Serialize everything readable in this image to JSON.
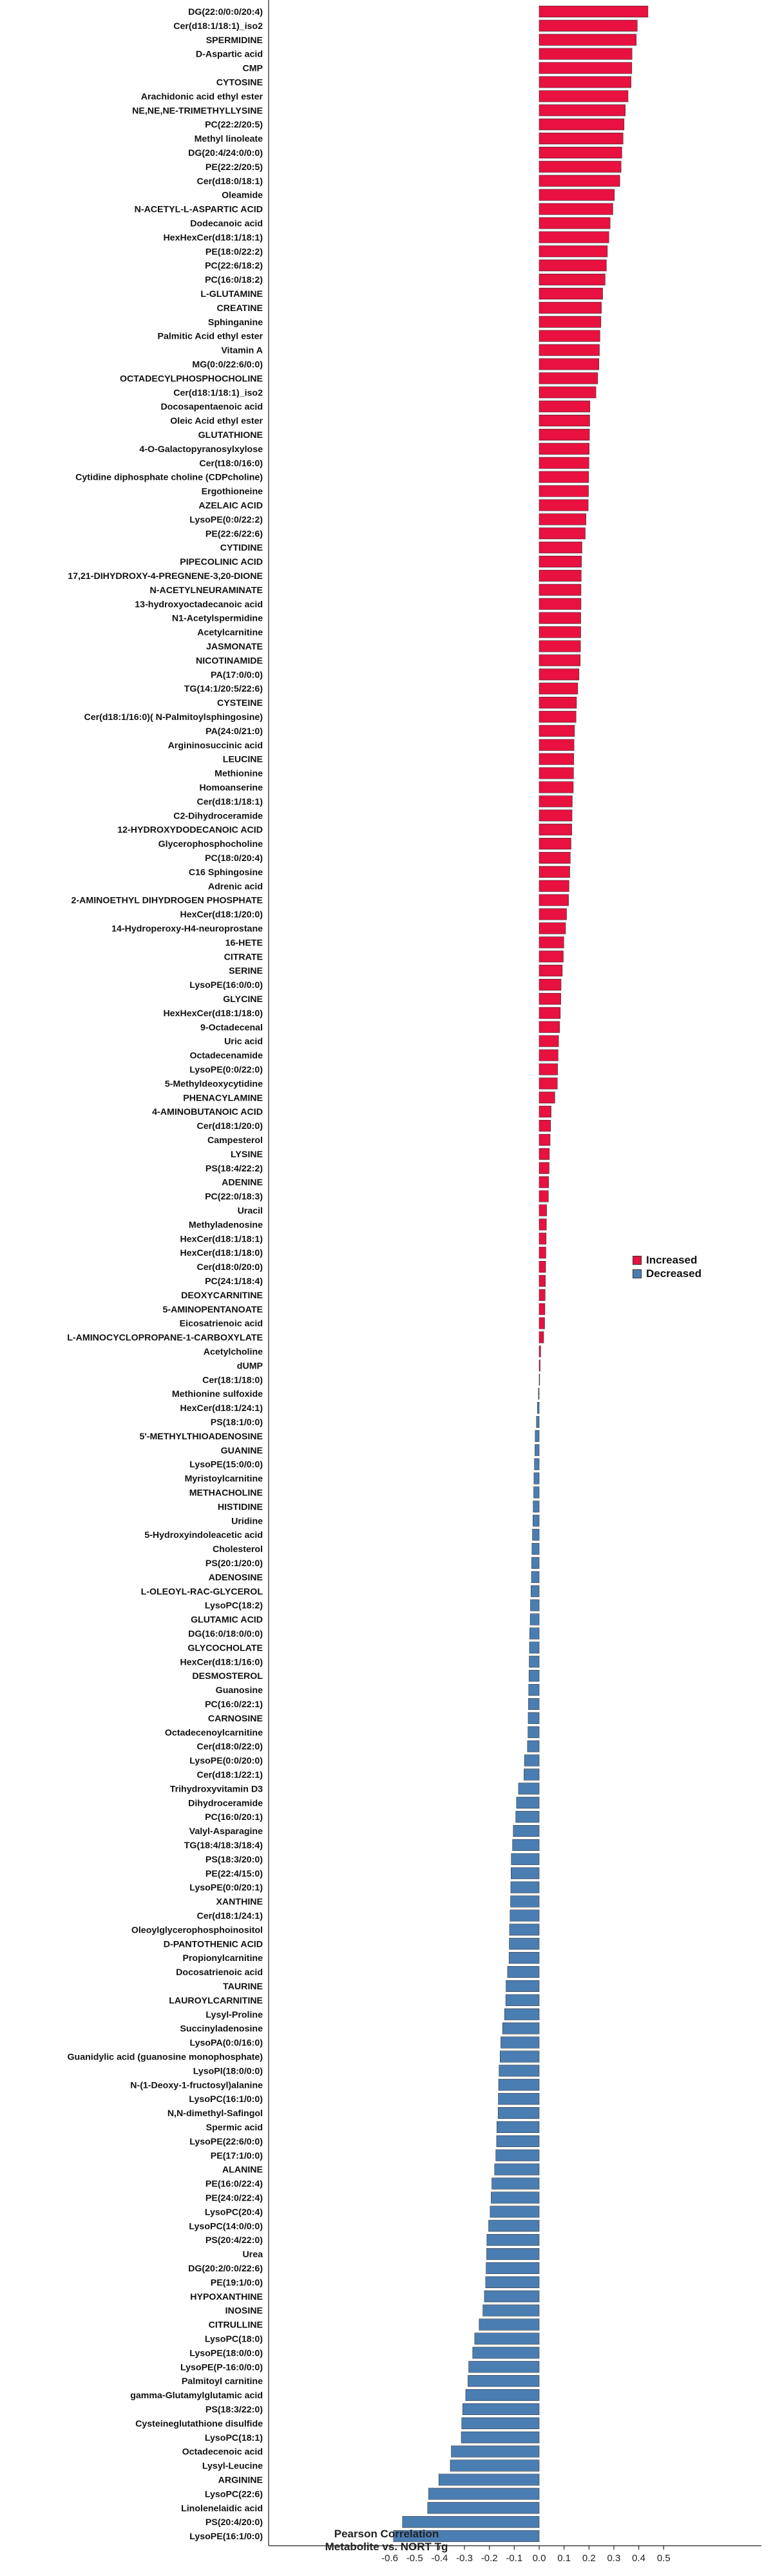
{
  "chart_data": {
    "type": "bar",
    "orientation": "horizontal",
    "xlabel": "Pearson Correlation\nMetabolite vs. NORT Tg",
    "xlim": [
      -0.65,
      0.55
    ],
    "xticks": [
      -0.6,
      -0.5,
      -0.4,
      -0.3,
      -0.2,
      -0.1,
      0.0,
      0.1,
      0.2,
      0.3,
      0.4,
      0.5
    ],
    "xtick_labels": [
      "-0.6",
      "-0.5",
      "-0.4",
      "-0.3",
      "-0.2",
      "-0.1",
      "0.0",
      "0.1",
      "0.2",
      "0.3",
      "0.4",
      "0.5"
    ],
    "grid": false,
    "legend": {
      "placement": "right-middle",
      "entries": [
        {
          "label": "Increased",
          "color": "#e8113f"
        },
        {
          "label": "Decreased",
          "color": "#4a7eb3"
        }
      ]
    },
    "colors": {
      "increased": "#e8113f",
      "decreased": "#4a7eb3",
      "edge": "#333333"
    },
    "categories": [
      "DG(22:0/0:0/20:4)",
      "Cer(d18:1/18:1)_iso2",
      "SPERMIDINE",
      "D-Aspartic acid",
      "CMP",
      "CYTOSINE",
      "Arachidonic acid ethyl ester",
      "NE,NE,NE-TRIMETHYLLYSINE",
      "PC(22:2/20:5)",
      "Methyl linoleate",
      "DG(20:4/24:0/0:0)",
      "PE(22:2/20:5)",
      "Cer(d18:0/18:1)",
      "Oleamide",
      "N-ACETYL-L-ASPARTIC ACID",
      "Dodecanoic acid",
      "HexHexCer(d18:1/18:1)",
      "PE(18:0/22:2)",
      "PC(22:6/18:2)",
      "PC(16:0/18:2)",
      "L-GLUTAMINE",
      "CREATINE",
      "Sphinganine",
      "Palmitic Acid ethyl ester",
      "Vitamin A",
      "MG(0:0/22:6/0:0)",
      "OCTADECYLPHOSPHOCHOLINE",
      "Cer(d18:1/18:1)_iso2",
      "Docosapentaenoic acid",
      "Oleic Acid ethyl ester",
      "GLUTATHIONE",
      "4-O-Galactopyranosylxylose",
      "Cer(t18:0/16:0)",
      "Cytidine diphosphate choline (CDPcholine)",
      "Ergothioneine",
      "AZELAIC ACID",
      "LysoPE(0:0/22:2)",
      "PE(22:6/22:6)",
      "CYTIDINE",
      "PIPECOLINIC ACID",
      "17,21-DIHYDROXY-4-PREGNENE-3,20-DIONE",
      "N-ACETYLNEURAMINATE",
      "13-hydroxyoctadecanoic acid",
      "N1-Acetylspermidine",
      "Acetylcarnitine",
      "JASMONATE",
      "NICOTINAMIDE",
      "PA(17:0/0:0)",
      "TG(14:1/20:5/22:6)",
      "CYSTEINE",
      "Cer(d18:1/16:0)( N-Palmitoylsphingosine)",
      "PA(24:0/21:0)",
      "Argininosuccinic acid",
      "LEUCINE",
      "Methionine",
      "Homoanserine",
      "Cer(d18:1/18:1)",
      "C2-Dihydroceramide",
      "12-HYDROXYDODECANOIC ACID",
      "Glycerophosphocholine",
      "PC(18:0/20:4)",
      "C16 Sphingosine",
      "Adrenic acid",
      "2-AMINOETHYL DIHYDROGEN PHOSPHATE",
      "HexCer(d18:1/20:0)",
      "14-Hydroperoxy-H4-neuroprostane",
      "16-HETE",
      "CITRATE",
      "SERINE",
      "LysoPE(16:0/0:0)",
      "GLYCINE",
      "HexHexCer(d18:1/18:0)",
      "9-Octadecenal",
      "Uric acid",
      "Octadecenamide",
      "LysoPE(0:0/22:0)",
      "5-Methyldeoxycytidine",
      "PHENACYLAMINE",
      "4-AMINOBUTANOIC ACID",
      "Cer(d18:1/20:0)",
      "Campesterol",
      "LYSINE",
      "PS(18:4/22:2)",
      "ADENINE",
      "PC(22:0/18:3)",
      "Uracil",
      "Methyladenosine",
      "HexCer(d18:1/18:1)",
      "HexCer(d18:1/18:0)",
      "Cer(d18:0/20:0)",
      "PC(24:1/18:4)",
      "DEOXYCARNITINE",
      "5-AMINOPENTANOATE",
      "Eicosatrienoic acid",
      "L-AMINOCYCLOPROPANE-1-CARBOXYLATE",
      "Acetylcholine",
      "dUMP",
      "Cer(18:1/18:0)",
      "Methionine sulfoxide",
      "HexCer(d18:1/24:1)",
      "PS(18:1/0:0)",
      "5'-METHYLTHIOADENOSINE",
      "GUANINE",
      "LysoPE(15:0/0:0)",
      "Myristoylcarnitine",
      "METHACHOLINE",
      "HISTIDINE",
      "Uridine",
      "5-Hydroxyindoleacetic acid",
      "Cholesterol",
      "PS(20:1/20:0)",
      "ADENOSINE",
      "L-OLEOYL-RAC-GLYCEROL",
      "LysoPC(18:2)",
      "GLUTAMIC ACID",
      "DG(16:0/18:0/0:0)",
      "GLYCOCHOLATE",
      "HexCer(d18:1/16:0)",
      "DESMOSTEROL",
      "Guanosine",
      "PC(16:0/22:1)",
      "CARNOSINE",
      "Octadecenoylcarnitine",
      "Cer(d18:0/22:0)",
      "LysoPE(0:0/20:0)",
      "Cer(d18:1/22:1)",
      "Trihydroxyvitamin D3",
      "Dihydroceramide",
      "PC(16:0/20:1)",
      "Valyl-Asparagine",
      "TG(18:4/18:3/18:4)",
      "PS(18:3/20:0)",
      "PE(22:4/15:0)",
      "LysoPE(0:0/20:1)",
      "XANTHINE",
      "Cer(d18:1/24:1)",
      "Oleoylglycerophosphoinositol",
      "D-PANTOTHENIC ACID",
      "Propionylcarnitine",
      "Docosatrienoic acid",
      "TAURINE",
      "LAUROYLCARNITINE",
      "Lysyl-Proline",
      "Succinyladenosine",
      "LysoPA(0:0/16:0)",
      "Guanidylic acid (guanosine monophosphate)",
      "LysoPI(18:0/0:0)",
      "N-(1-Deoxy-1-fructosyl)alanine",
      "LysoPC(16:1/0:0)",
      "N,N-dimethyl-Safingol",
      "Spermic acid",
      "LysoPE(22:6/0:0)",
      "PE(17:1/0:0)",
      "ALANINE",
      "PE(16:0/22:4)",
      "PE(24:0/22:4)",
      "LysoPC(20:4)",
      "LysoPC(14:0/0:0)",
      "PS(20:4/22:0)",
      "Urea",
      "DG(20:2/0:0/22:6)",
      "PE(19:1/0:0)",
      "HYPOXANTHINE",
      "INOSINE",
      "CITRULLINE",
      "LysoPC(18:0)",
      "LysoPE(18:0/0:0)",
      "LysoPE(P-16:0/0:0)",
      "Palmitoyl carnitine",
      "gamma-Glutamylglutamic acid",
      "PS(18:3/22:0)",
      "Cysteineglutathione disulfide",
      "LysoPC(18:1)",
      "Octadecenoic acid",
      "Lysyl-Leucine",
      "ARGININE",
      "LysoPC(22:6)",
      "Linolenelaidic acid",
      "PS(20:4/20:0)",
      "LysoPE(16:1/0:0)"
    ],
    "values": [
      0.437,
      0.394,
      0.39,
      0.373,
      0.372,
      0.369,
      0.357,
      0.346,
      0.341,
      0.337,
      0.332,
      0.329,
      0.324,
      0.302,
      0.296,
      0.285,
      0.28,
      0.274,
      0.27,
      0.265,
      0.255,
      0.25,
      0.248,
      0.244,
      0.242,
      0.24,
      0.235,
      0.228,
      0.204,
      0.203,
      0.202,
      0.201,
      0.2,
      0.199,
      0.198,
      0.197,
      0.188,
      0.185,
      0.172,
      0.17,
      0.169,
      0.168,
      0.168,
      0.167,
      0.167,
      0.166,
      0.165,
      0.16,
      0.155,
      0.15,
      0.148,
      0.142,
      0.14,
      0.139,
      0.138,
      0.137,
      0.133,
      0.132,
      0.131,
      0.128,
      0.125,
      0.123,
      0.12,
      0.118,
      0.11,
      0.106,
      0.099,
      0.097,
      0.093,
      0.088,
      0.087,
      0.085,
      0.082,
      0.078,
      0.076,
      0.074,
      0.073,
      0.063,
      0.048,
      0.046,
      0.044,
      0.041,
      0.04,
      0.038,
      0.037,
      0.03,
      0.029,
      0.028,
      0.027,
      0.026,
      0.025,
      0.024,
      0.023,
      0.022,
      0.018,
      0.006,
      0.004,
      0.002,
      -0.003,
      -0.007,
      -0.011,
      -0.016,
      -0.017,
      -0.019,
      -0.021,
      -0.022,
      -0.024,
      -0.025,
      -0.027,
      -0.029,
      -0.03,
      -0.031,
      -0.033,
      -0.035,
      -0.036,
      -0.038,
      -0.039,
      -0.04,
      -0.041,
      -0.042,
      -0.043,
      -0.044,
      -0.045,
      -0.047,
      -0.059,
      -0.061,
      -0.083,
      -0.091,
      -0.094,
      -0.104,
      -0.107,
      -0.112,
      -0.113,
      -0.114,
      -0.115,
      -0.117,
      -0.119,
      -0.12,
      -0.121,
      -0.127,
      -0.133,
      -0.134,
      -0.139,
      -0.147,
      -0.154,
      -0.157,
      -0.161,
      -0.163,
      -0.164,
      -0.165,
      -0.17,
      -0.171,
      -0.174,
      -0.179,
      -0.19,
      -0.193,
      -0.197,
      -0.203,
      -0.21,
      -0.211,
      -0.213,
      -0.215,
      -0.22,
      -0.226,
      -0.241,
      -0.259,
      -0.267,
      -0.283,
      -0.286,
      -0.295,
      -0.307,
      -0.311,
      -0.313,
      -0.353,
      -0.357,
      -0.403,
      -0.444,
      -0.448,
      -0.549,
      -0.585
    ]
  }
}
